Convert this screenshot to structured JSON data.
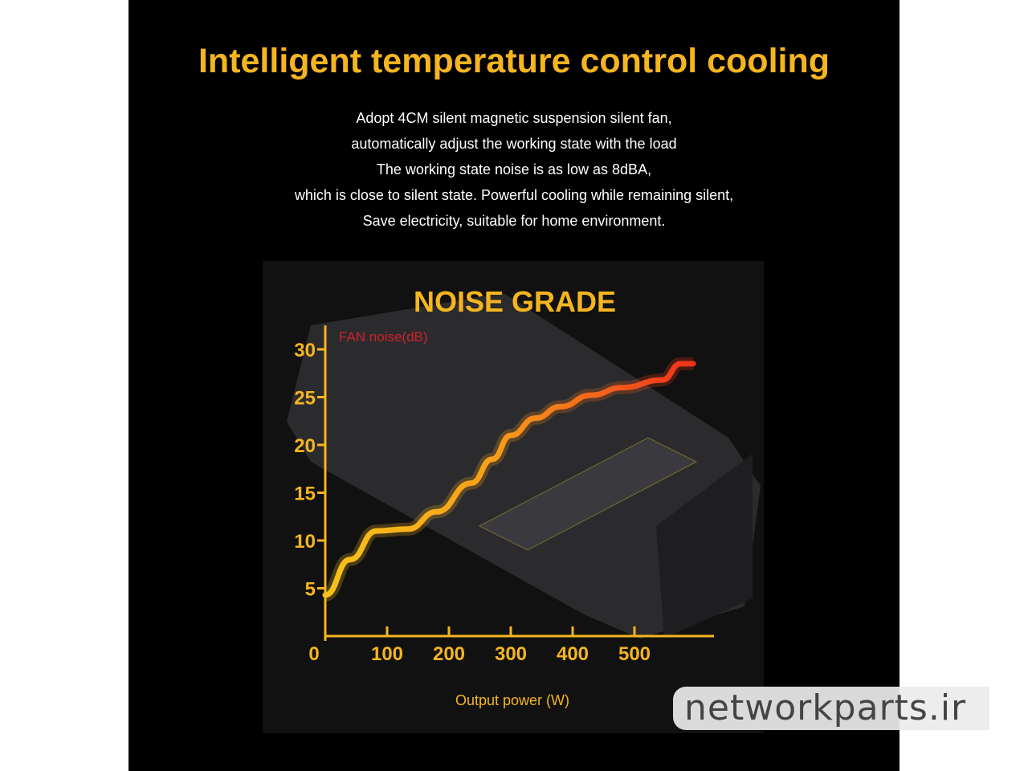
{
  "headline": "Intelligent temperature control cooling",
  "description": [
    "Adopt 4CM silent magnetic suspension silent fan,",
    "automatically adjust the working state with the load",
    "The working state noise is as low as 8dBA,",
    "which is close to silent state. Powerful cooling while remaining silent,",
    "Save electricity, suitable for home environment."
  ],
  "watermark": "networkparts.ir",
  "colors": {
    "accent": "#f5b51f",
    "curve_start": "#f7c21a",
    "curve_end": "#f0301a",
    "ylabel": "#d0202a"
  },
  "chart_data": {
    "type": "line",
    "title": "NOISE GRADE",
    "xlabel": "Output power (W)",
    "ylabel": "FAN noise(dB)",
    "xlim": [
      0,
      600
    ],
    "ylim": [
      0,
      32
    ],
    "xticks": [
      "0",
      "100",
      "200",
      "300",
      "400",
      "500"
    ],
    "yticks": [
      "5",
      "10",
      "15",
      "20",
      "25",
      "30"
    ],
    "grid": false,
    "x": [
      0,
      40,
      83,
      134,
      180,
      236,
      270,
      300,
      340,
      380,
      430,
      480,
      545,
      575,
      595
    ],
    "y": [
      4.3,
      8,
      11,
      11.2,
      13,
      16,
      18.5,
      21,
      22.8,
      24,
      25.2,
      26,
      26.8,
      28.5,
      28.5
    ]
  }
}
